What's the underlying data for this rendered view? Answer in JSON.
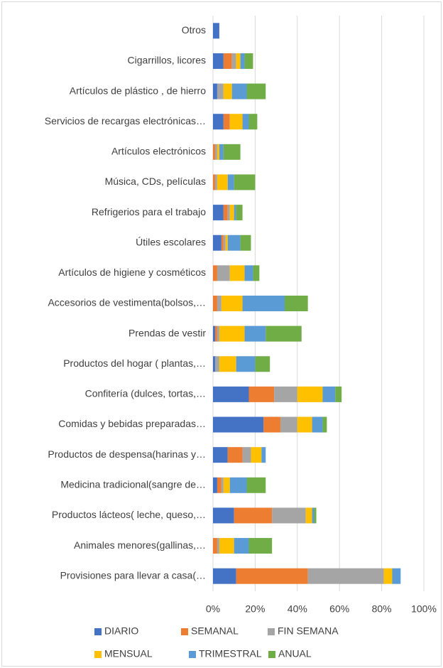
{
  "chart_data": {
    "type": "stacked_bar_horizontal",
    "categories": [
      "Otros",
      "Cigarrillos, licores",
      "Artículos de plástico , de hierro",
      "Servicios de recargas electrónicas…",
      "Artículos electrónicos",
      "Música, CDs, películas",
      "Refrigerios para el trabajo",
      "Útiles escolares",
      "Artículos de higiene y cosméticos",
      "Accesorios de vestimenta(bolsos,…",
      "Prendas de vestir",
      "Productos del hogar ( plantas,…",
      "Confitería (dulces, tortas,…",
      "Comidas y bebidas preparadas…",
      "Productos de despensa(harinas y…",
      "Medicina tradicional(sangre de…",
      "Productos lácteos( leche, queso,…",
      "Animales menores(gallinas,…",
      "Provisiones para llevar a casa(…"
    ],
    "series": [
      {
        "name": "DIARIO",
        "color": "#4472c4",
        "values": [
          3,
          5,
          2,
          5,
          0,
          0,
          5,
          4,
          0,
          0,
          1,
          1,
          17,
          24,
          7,
          2,
          10,
          0,
          11
        ]
      },
      {
        "name": "SEMANAL",
        "color": "#ed7d31",
        "values": [
          0,
          4,
          0,
          3,
          1,
          1,
          2,
          1,
          2,
          2,
          1,
          0,
          12,
          8,
          7,
          2,
          18,
          2,
          34
        ]
      },
      {
        "name": "FIN SEMANA",
        "color": "#a5a5a5",
        "values": [
          0,
          2,
          3,
          0,
          1,
          1,
          1,
          1,
          6,
          2,
          1,
          2,
          11,
          8,
          4,
          1,
          16,
          1,
          36
        ]
      },
      {
        "name": "MENSUAL",
        "color": "#ffc000",
        "values": [
          0,
          2,
          4,
          6,
          1,
          5,
          2,
          1,
          7,
          10,
          12,
          8,
          12,
          7,
          5,
          3,
          3,
          7,
          4
        ]
      },
      {
        "name": "TRIMESTRAL",
        "color": "#5b9bd5",
        "values": [
          0,
          2,
          7,
          3,
          2,
          3,
          1,
          6,
          4,
          20,
          10,
          9,
          6,
          5,
          2,
          8,
          1,
          7,
          4
        ]
      },
      {
        "name": "ANUAL",
        "color": "#70ad47",
        "values": [
          0,
          4,
          9,
          4,
          8,
          10,
          3,
          5,
          3,
          11,
          17,
          7,
          3,
          2,
          0,
          9,
          1,
          11,
          0
        ]
      }
    ],
    "xlim": [
      0,
      100
    ],
    "xticks": [
      {
        "value": 0,
        "label": "0%"
      },
      {
        "value": 20,
        "label": "20%"
      },
      {
        "value": 40,
        "label": "40%"
      },
      {
        "value": 60,
        "label": "60%"
      },
      {
        "value": 80,
        "label": "80%"
      },
      {
        "value": 100,
        "label": "100%"
      }
    ],
    "grid": true
  }
}
